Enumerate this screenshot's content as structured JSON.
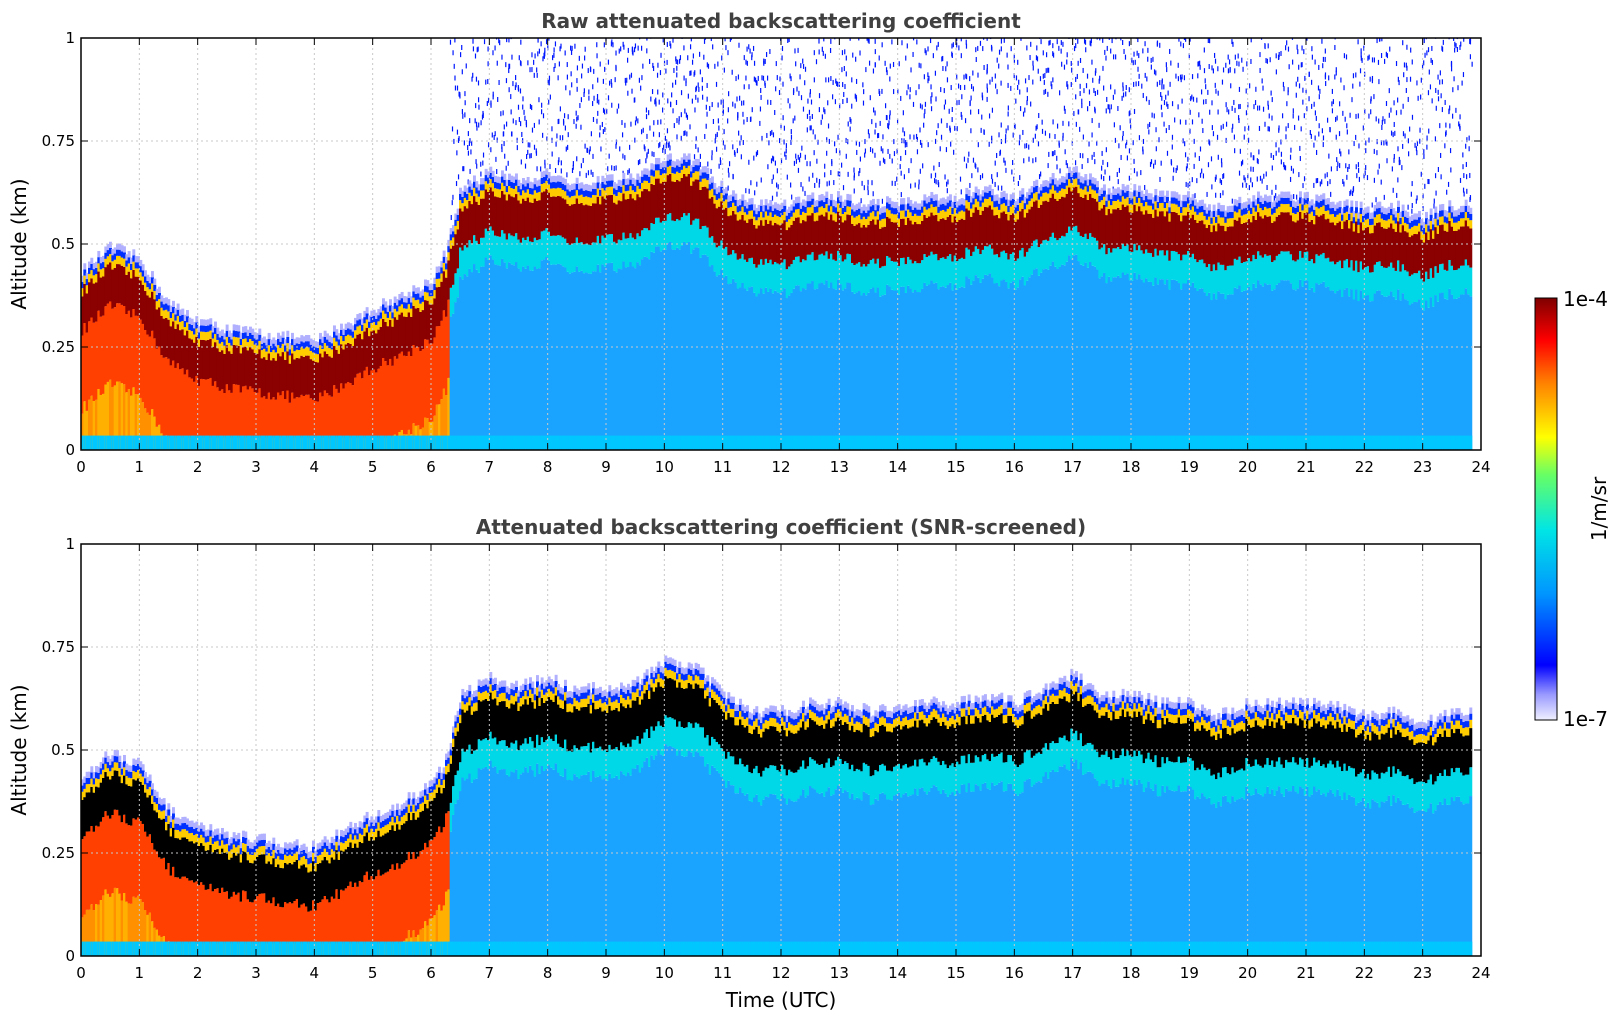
{
  "chart_data": [
    {
      "type": "heatmap",
      "title": "Raw attenuated backscattering coefficient",
      "ylabel": "Altitude (km)",
      "xlabel": "",
      "xlim": [
        0,
        24
      ],
      "ylim": [
        0,
        1
      ],
      "x_ticks": [
        0,
        1,
        2,
        3,
        4,
        5,
        6,
        7,
        8,
        9,
        10,
        11,
        12,
        13,
        14,
        15,
        16,
        17,
        18,
        19,
        20,
        21,
        22,
        23,
        24
      ],
      "y_ticks": [
        "0",
        "0.25",
        "0.5",
        "0.75",
        "1"
      ],
      "y_tick_values": [
        0,
        0.25,
        0.5,
        0.75,
        1
      ],
      "grid": true,
      "screened": false,
      "layer_top_km": {
        "x": [
          0,
          0.5,
          1,
          1.5,
          2,
          2.5,
          3,
          3.5,
          4,
          4.5,
          5,
          5.5,
          6,
          6.25,
          6.5,
          7,
          7.5,
          8,
          8.5,
          9,
          9.5,
          10,
          10.5,
          11,
          11.5,
          12,
          12.5,
          13,
          13.5,
          14,
          14.5,
          15,
          15.5,
          16,
          16.5,
          17,
          17.5,
          18,
          18.5,
          19,
          19.5,
          20,
          20.5,
          21,
          21.5,
          22,
          22.5,
          23,
          23.5,
          23.8
        ],
        "y": [
          0.42,
          0.48,
          0.45,
          0.34,
          0.3,
          0.28,
          0.27,
          0.26,
          0.25,
          0.29,
          0.33,
          0.36,
          0.4,
          0.47,
          0.62,
          0.66,
          0.64,
          0.66,
          0.63,
          0.64,
          0.65,
          0.7,
          0.69,
          0.62,
          0.58,
          0.58,
          0.6,
          0.6,
          0.58,
          0.59,
          0.6,
          0.6,
          0.62,
          0.6,
          0.64,
          0.67,
          0.62,
          0.62,
          0.6,
          0.6,
          0.57,
          0.6,
          0.6,
          0.6,
          0.59,
          0.57,
          0.58,
          0.55,
          0.58,
          0.58
        ]
      },
      "colorbar": {
        "min_label": "1e-7",
        "max_label": "1e-4",
        "label": "1/m/sr"
      }
    },
    {
      "type": "heatmap",
      "title": "Attenuated backscattering coefficient (SNR-screened)",
      "ylabel": "Altitude (km)",
      "xlabel": "Time (UTC)",
      "xlim": [
        0,
        24
      ],
      "ylim": [
        0,
        1
      ],
      "x_ticks": [
        0,
        1,
        2,
        3,
        4,
        5,
        6,
        7,
        8,
        9,
        10,
        11,
        12,
        13,
        14,
        15,
        16,
        17,
        18,
        19,
        20,
        21,
        22,
        23,
        24
      ],
      "y_ticks": [
        "0",
        "0.25",
        "0.5",
        "0.75",
        "1"
      ],
      "y_tick_values": [
        0,
        0.25,
        0.5,
        0.75,
        1
      ],
      "grid": true,
      "screened": true,
      "layer_top_km": {
        "x": [
          0,
          0.5,
          1,
          1.5,
          2,
          2.5,
          3,
          3.5,
          4,
          4.5,
          5,
          5.5,
          6,
          6.25,
          6.5,
          7,
          7.5,
          8,
          8.5,
          9,
          9.5,
          10,
          10.5,
          11,
          11.5,
          12,
          12.5,
          13,
          13.5,
          14,
          14.5,
          15,
          15.5,
          16,
          16.5,
          17,
          17.5,
          18,
          18.5,
          19,
          19.5,
          20,
          20.5,
          21,
          21.5,
          22,
          22.5,
          23,
          23.5,
          23.8
        ],
        "y": [
          0.42,
          0.48,
          0.45,
          0.34,
          0.3,
          0.28,
          0.27,
          0.26,
          0.25,
          0.29,
          0.33,
          0.36,
          0.4,
          0.47,
          0.62,
          0.66,
          0.64,
          0.66,
          0.63,
          0.64,
          0.65,
          0.7,
          0.69,
          0.62,
          0.58,
          0.58,
          0.6,
          0.6,
          0.58,
          0.59,
          0.6,
          0.6,
          0.62,
          0.6,
          0.64,
          0.67,
          0.62,
          0.62,
          0.6,
          0.6,
          0.57,
          0.6,
          0.6,
          0.6,
          0.59,
          0.57,
          0.58,
          0.55,
          0.58,
          0.58
        ]
      },
      "colorbar": {
        "min_label": "1e-7",
        "max_label": "1e-4",
        "label": "1/m/sr"
      }
    }
  ],
  "colors": {
    "layer_core_raw": "#8b0000",
    "layer_core_screened": "#000000",
    "low_signal": "#1aa3ff",
    "noise": "#0018ff",
    "grid": "#c8c8c8"
  }
}
